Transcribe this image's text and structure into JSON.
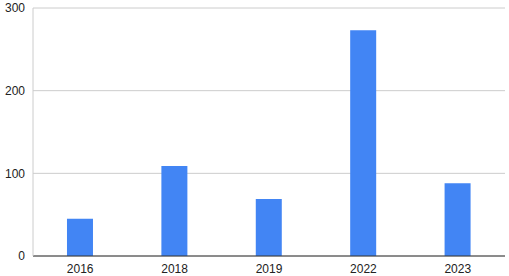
{
  "chart_data": {
    "type": "bar",
    "categories": [
      "2016",
      "2018",
      "2019",
      "2022",
      "2023"
    ],
    "values": [
      45,
      109,
      69,
      273,
      88
    ],
    "color": "#4285f4",
    "ylim": [
      0,
      300
    ],
    "yticks": [
      0,
      100,
      200,
      300
    ],
    "grid": true
  }
}
